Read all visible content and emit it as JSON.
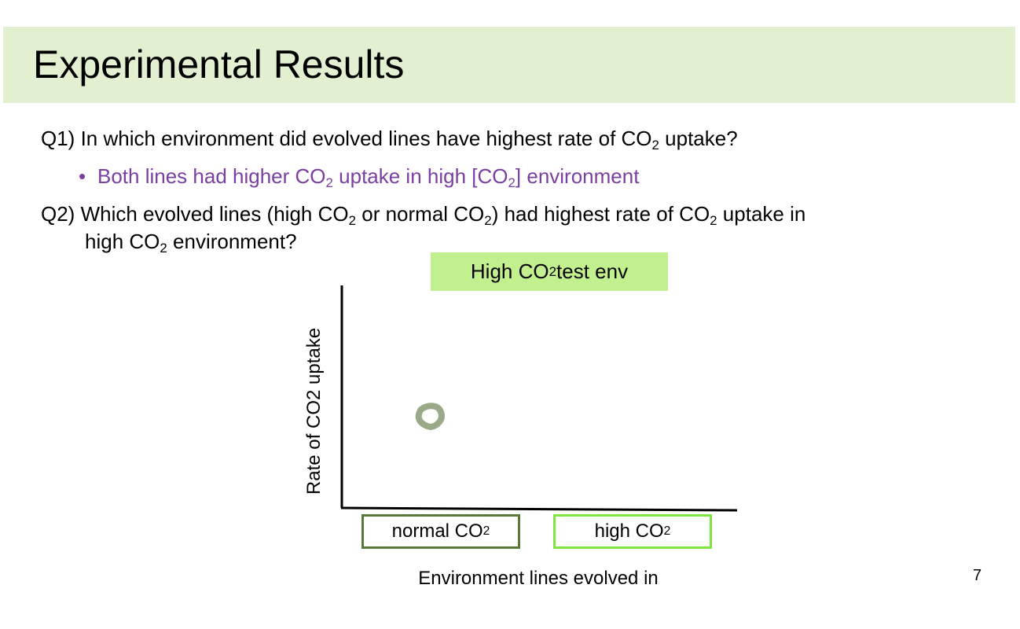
{
  "slide": {
    "title": "Experimental Results",
    "page_number": "7"
  },
  "q1": {
    "pre": "Q1) In which environment did evolved lines have highest rate of CO",
    "sub": "2",
    "post": " uptake?"
  },
  "answer1": {
    "bullet": "•",
    "t1": "Both lines had higher CO",
    "s1": "2",
    "t2": " uptake in high [CO",
    "s2": "2",
    "t3": "] environment"
  },
  "q2": {
    "t1": "Q2) Which evolved lines (high CO",
    "s1": "2",
    "t2": " or normal CO",
    "s2": "2",
    "t3": ") had highest rate of CO",
    "s3": "2",
    "t4": " uptake in",
    "l2_t1": "high CO",
    "l2_s1": "2",
    "l2_t2": " environment?"
  },
  "chart_data": {
    "type": "scatter",
    "title_pre": "High CO",
    "title_sub": "2",
    "title_post": " test env",
    "ylabel": "Rate of CO2 uptake",
    "xlabel": "Environment lines evolved in",
    "categories": [
      {
        "label": "normal CO",
        "sub": "2"
      },
      {
        "label": "high CO",
        "sub": "2"
      }
    ],
    "points": [
      {
        "category": "normal CO2",
        "level": 0.41
      }
    ],
    "colors": {
      "marker": "#9aaa88",
      "normal_box": "#5a7a3a",
      "high_box": "#7ee83f",
      "title_fill": "#c3f08e"
    },
    "grid": false
  },
  "colors": {
    "title_bar": "#e2efd0",
    "answer_text": "#7a3fa0"
  }
}
